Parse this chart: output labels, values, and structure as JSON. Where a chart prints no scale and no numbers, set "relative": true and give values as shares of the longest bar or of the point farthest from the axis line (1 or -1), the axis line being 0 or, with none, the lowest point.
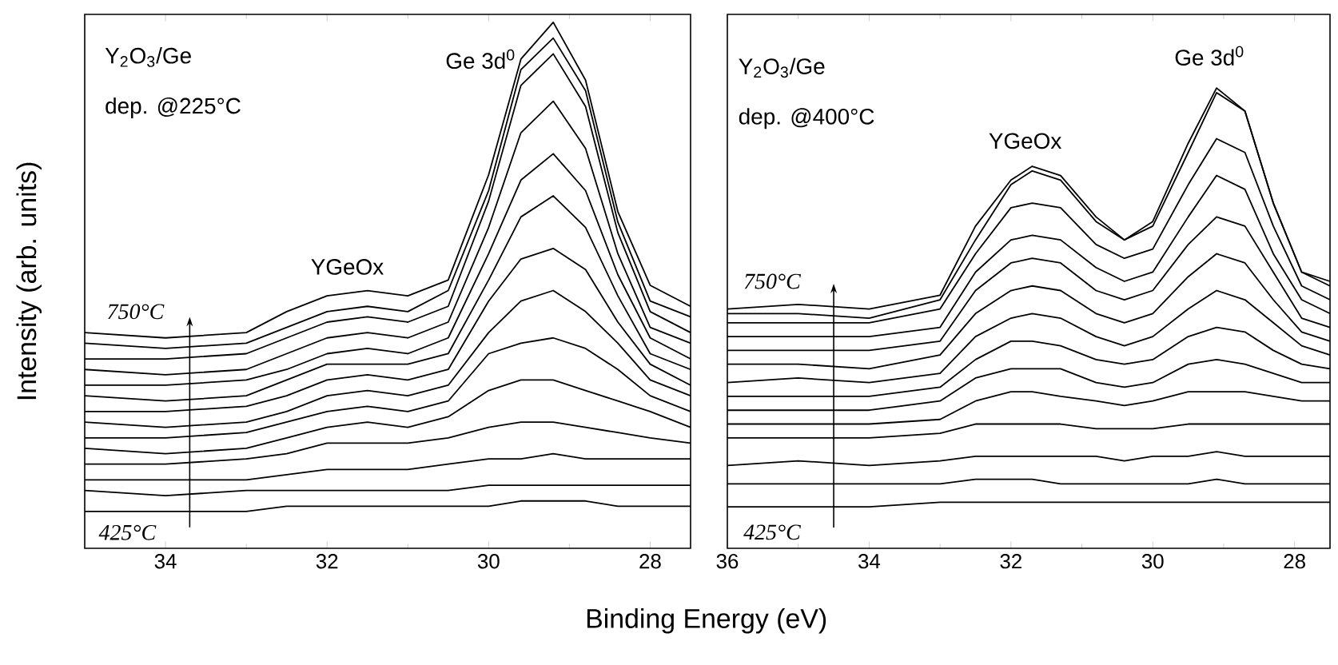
{
  "chart_data": [
    {
      "type": "line",
      "relative": true,
      "ylabel": "Intensity (arb. units)",
      "xlabel": "Binding Energy (eV)",
      "annotations": [
        "Y$_{2}$O$_{3}$/Ge",
        "dep. @225°C",
        "Ge 3d$^{0}$",
        "YGeOx",
        "750°C",
        "425°C"
      ],
      "xlim": [
        35,
        27.5
      ],
      "xticks": [
        34,
        32,
        30,
        28
      ],
      "marker": "none",
      "x": [
        35,
        34,
        33,
        32.5,
        32,
        31.5,
        31,
        30.5,
        30,
        29.6,
        29.2,
        28.8,
        28.4,
        28,
        27.5
      ],
      "series": [
        {
          "color": "#000000",
          "values": [
            0.07,
            0.07,
            0.07,
            0.08,
            0.08,
            0.08,
            0.08,
            0.08,
            0.08,
            0.09,
            0.09,
            0.09,
            0.08,
            0.08,
            0.08
          ]
        },
        {
          "color": "#000000",
          "values": [
            0.11,
            0.1,
            0.11,
            0.11,
            0.11,
            0.11,
            0.11,
            0.11,
            0.12,
            0.12,
            0.12,
            0.12,
            0.12,
            0.12,
            0.12
          ]
        },
        {
          "color": "#000000",
          "values": [
            0.13,
            0.13,
            0.13,
            0.14,
            0.15,
            0.15,
            0.15,
            0.16,
            0.17,
            0.17,
            0.18,
            0.17,
            0.17,
            0.17,
            0.17
          ]
        },
        {
          "color": "#000000",
          "values": [
            0.16,
            0.16,
            0.17,
            0.18,
            0.2,
            0.2,
            0.2,
            0.21,
            0.23,
            0.24,
            0.24,
            0.23,
            0.22,
            0.21,
            0.2
          ]
        },
        {
          "color": "#000000",
          "values": [
            0.19,
            0.18,
            0.19,
            0.21,
            0.23,
            0.24,
            0.23,
            0.25,
            0.3,
            0.32,
            0.32,
            0.3,
            0.28,
            0.26,
            0.23
          ]
        },
        {
          "color": "#000000",
          "values": [
            0.21,
            0.21,
            0.22,
            0.24,
            0.26,
            0.27,
            0.26,
            0.28,
            0.37,
            0.39,
            0.4,
            0.38,
            0.34,
            0.29,
            0.26
          ]
        },
        {
          "color": "#000000",
          "values": [
            0.24,
            0.23,
            0.24,
            0.26,
            0.29,
            0.3,
            0.29,
            0.31,
            0.41,
            0.47,
            0.49,
            0.45,
            0.39,
            0.32,
            0.29
          ]
        },
        {
          "color": "#000000",
          "values": [
            0.26,
            0.26,
            0.27,
            0.29,
            0.32,
            0.33,
            0.32,
            0.34,
            0.47,
            0.55,
            0.57,
            0.53,
            0.43,
            0.35,
            0.31
          ]
        },
        {
          "color": "#000000",
          "values": [
            0.29,
            0.28,
            0.29,
            0.32,
            0.35,
            0.35,
            0.35,
            0.37,
            0.51,
            0.63,
            0.67,
            0.61,
            0.48,
            0.37,
            0.34
          ]
        },
        {
          "color": "#000000",
          "values": [
            0.31,
            0.31,
            0.32,
            0.34,
            0.37,
            0.38,
            0.37,
            0.4,
            0.56,
            0.7,
            0.75,
            0.68,
            0.52,
            0.4,
            0.36
          ]
        },
        {
          "color": "#000000",
          "values": [
            0.34,
            0.33,
            0.34,
            0.37,
            0.4,
            0.41,
            0.4,
            0.43,
            0.61,
            0.79,
            0.85,
            0.76,
            0.56,
            0.42,
            0.39
          ]
        },
        {
          "color": "#000000",
          "values": [
            0.36,
            0.36,
            0.37,
            0.4,
            0.43,
            0.44,
            0.43,
            0.46,
            0.66,
            0.88,
            0.94,
            0.84,
            0.6,
            0.45,
            0.41
          ]
        },
        {
          "color": "#000000",
          "values": [
            0.39,
            0.38,
            0.39,
            0.42,
            0.45,
            0.46,
            0.45,
            0.49,
            0.68,
            0.91,
            0.97,
            0.87,
            0.62,
            0.47,
            0.44
          ]
        },
        {
          "color": "#000000",
          "values": [
            0.41,
            0.4,
            0.41,
            0.45,
            0.48,
            0.49,
            0.48,
            0.51,
            0.71,
            0.93,
            1.0,
            0.89,
            0.64,
            0.5,
            0.46
          ]
        }
      ]
    },
    {
      "type": "line",
      "relative": true,
      "annotations": [
        "Y$_{2}$O$_{3}$/Ge",
        "dep. @400°C",
        "Ge 3d$^{0}$",
        "YGeOx",
        "750°C",
        "425°C"
      ],
      "xlim": [
        36,
        27.5
      ],
      "xticks": [
        36,
        34,
        32,
        30,
        28
      ],
      "marker": "none",
      "x": [
        36,
        35,
        34,
        33,
        32.5,
        32,
        31.7,
        31.3,
        30.8,
        30.4,
        30,
        29.5,
        29.1,
        28.7,
        28.3,
        27.9,
        27.5
      ],
      "series": [
        {
          "color": "#000000",
          "values": [
            0.09,
            0.09,
            0.09,
            0.1,
            0.1,
            0.1,
            0.1,
            0.1,
            0.1,
            0.1,
            0.1,
            0.1,
            0.1,
            0.1,
            0.1,
            0.1,
            0.1
          ]
        },
        {
          "color": "#000000",
          "values": [
            0.14,
            0.14,
            0.14,
            0.14,
            0.15,
            0.15,
            0.15,
            0.14,
            0.14,
            0.14,
            0.14,
            0.14,
            0.15,
            0.14,
            0.14,
            0.14,
            0.14
          ]
        },
        {
          "color": "#000000",
          "values": [
            0.18,
            0.19,
            0.18,
            0.19,
            0.2,
            0.2,
            0.2,
            0.2,
            0.2,
            0.19,
            0.2,
            0.2,
            0.21,
            0.2,
            0.2,
            0.2,
            0.2
          ]
        },
        {
          "color": "#000000",
          "values": [
            0.24,
            0.24,
            0.24,
            0.25,
            0.27,
            0.27,
            0.27,
            0.27,
            0.26,
            0.26,
            0.26,
            0.27,
            0.27,
            0.27,
            0.27,
            0.27,
            0.27
          ]
        },
        {
          "color": "#000000",
          "values": [
            0.27,
            0.27,
            0.27,
            0.28,
            0.32,
            0.34,
            0.34,
            0.33,
            0.32,
            0.31,
            0.32,
            0.34,
            0.34,
            0.34,
            0.33,
            0.32,
            0.32
          ]
        },
        {
          "color": "#000000",
          "values": [
            0.3,
            0.3,
            0.3,
            0.32,
            0.37,
            0.39,
            0.39,
            0.39,
            0.36,
            0.35,
            0.36,
            0.4,
            0.41,
            0.4,
            0.38,
            0.36,
            0.36
          ]
        },
        {
          "color": "#000000",
          "values": [
            0.33,
            0.33,
            0.33,
            0.35,
            0.41,
            0.45,
            0.45,
            0.44,
            0.41,
            0.4,
            0.41,
            0.46,
            0.48,
            0.47,
            0.43,
            0.4,
            0.39
          ]
        },
        {
          "color": "#000000",
          "values": [
            0.36,
            0.37,
            0.36,
            0.38,
            0.46,
            0.5,
            0.51,
            0.5,
            0.46,
            0.44,
            0.46,
            0.52,
            0.56,
            0.54,
            0.49,
            0.44,
            0.42
          ]
        },
        {
          "color": "#000000",
          "values": [
            0.4,
            0.4,
            0.39,
            0.42,
            0.51,
            0.56,
            0.57,
            0.56,
            0.51,
            0.49,
            0.51,
            0.59,
            0.64,
            0.62,
            0.54,
            0.47,
            0.45
          ]
        },
        {
          "color": "#000000",
          "values": [
            0.43,
            0.43,
            0.43,
            0.45,
            0.56,
            0.62,
            0.63,
            0.62,
            0.56,
            0.54,
            0.56,
            0.66,
            0.72,
            0.7,
            0.6,
            0.5,
            0.48
          ]
        },
        {
          "color": "#000000",
          "values": [
            0.46,
            0.46,
            0.46,
            0.48,
            0.6,
            0.67,
            0.68,
            0.67,
            0.61,
            0.58,
            0.6,
            0.72,
            0.81,
            0.78,
            0.64,
            0.54,
            0.51
          ]
        },
        {
          "color": "#000000",
          "values": [
            0.49,
            0.49,
            0.49,
            0.52,
            0.64,
            0.74,
            0.75,
            0.74,
            0.66,
            0.63,
            0.65,
            0.79,
            0.89,
            0.86,
            0.7,
            0.57,
            0.54
          ]
        },
        {
          "color": "#000000",
          "values": [
            0.51,
            0.51,
            0.5,
            0.54,
            0.67,
            0.79,
            0.82,
            0.8,
            0.71,
            0.67,
            0.7,
            0.86,
            0.99,
            0.95,
            0.75,
            0.6,
            0.57
          ]
        },
        {
          "color": "#000000",
          "values": [
            0.52,
            0.53,
            0.52,
            0.55,
            0.7,
            0.8,
            0.83,
            0.81,
            0.72,
            0.67,
            0.71,
            0.88,
            1.0,
            0.95,
            0.75,
            0.6,
            0.58
          ]
        }
      ]
    }
  ]
}
